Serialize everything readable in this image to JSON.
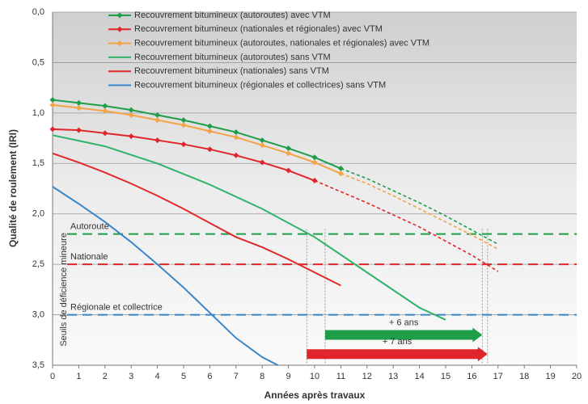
{
  "chart_data": {
    "type": "line",
    "y_label": "Qualité de roulement (IRI)",
    "x_label": "Années après travaux",
    "xlim": [
      0,
      20
    ],
    "xticks": [
      0,
      1,
      2,
      3,
      4,
      5,
      6,
      7,
      8,
      9,
      10,
      11,
      12,
      13,
      14,
      15,
      16,
      17,
      18,
      19,
      20
    ],
    "ylim": [
      0,
      3.5
    ],
    "y_inverted": true,
    "yticks": [
      {
        "value": 0,
        "label": "0,0"
      },
      {
        "value": 0.5,
        "label": "0,5"
      },
      {
        "value": 1,
        "label": "1,0"
      },
      {
        "value": 1.5,
        "label": "1,5"
      },
      {
        "value": 2,
        "label": "2,0"
      },
      {
        "value": 2.5,
        "label": "2,5"
      },
      {
        "value": 3,
        "label": "3,0"
      },
      {
        "value": 3.5,
        "label": "3,5"
      }
    ],
    "grid": true,
    "series": [
      {
        "name": "Recouvrement bitumineux (autoroutes) avec VTM",
        "color": "#1f9e4a",
        "markers": true,
        "dashed_from": 11,
        "x": [
          0,
          1,
          2,
          3,
          4,
          5,
          6,
          7,
          8,
          9,
          10,
          11,
          12,
          13,
          14,
          15,
          16,
          17
        ],
        "values": [
          0.87,
          0.9,
          0.93,
          0.97,
          1.02,
          1.07,
          1.13,
          1.19,
          1.27,
          1.35,
          1.44,
          1.55,
          1.65,
          1.77,
          1.89,
          2.02,
          2.16,
          2.3
        ]
      },
      {
        "name": "Recouvrement bitumineux (nationales et régionales) avec VTM",
        "color": "#e0262b",
        "markers": true,
        "dashed_from": 10,
        "x": [
          0,
          1,
          2,
          3,
          4,
          5,
          6,
          7,
          8,
          9,
          10,
          11,
          12,
          13,
          14,
          15,
          16,
          17
        ],
        "values": [
          1.16,
          1.17,
          1.2,
          1.23,
          1.27,
          1.31,
          1.36,
          1.42,
          1.49,
          1.57,
          1.67,
          1.78,
          1.89,
          2.01,
          2.13,
          2.27,
          2.41,
          2.57
        ]
      },
      {
        "name": "Recouvrement bitumineux (autoroutes, nationales et régionales) avec VTM",
        "color": "#f4a345",
        "markers": true,
        "dashed_from": 11,
        "x": [
          0,
          1,
          2,
          3,
          4,
          5,
          6,
          7,
          8,
          9,
          10,
          11,
          12,
          13,
          14,
          15,
          16,
          17
        ],
        "values": [
          0.92,
          0.95,
          0.98,
          1.02,
          1.07,
          1.12,
          1.18,
          1.24,
          1.32,
          1.4,
          1.49,
          1.6,
          1.7,
          1.82,
          1.95,
          2.08,
          2.21,
          2.35
        ]
      },
      {
        "name": "Recouvrement bitumineux (autoroutes) sans VTM",
        "color": "#2fb36a",
        "markers": false,
        "x": [
          0,
          2,
          4,
          6,
          8,
          10,
          12,
          14,
          15
        ],
        "values": [
          1.22,
          1.33,
          1.5,
          1.71,
          1.95,
          2.23,
          2.58,
          2.93,
          3.05
        ]
      },
      {
        "name": "Recouvrement bitumineux (nationales) sans VTM",
        "color": "#e02a2a",
        "markers": false,
        "x": [
          0,
          1,
          2,
          3,
          4,
          5,
          6,
          7,
          8,
          9,
          10,
          11
        ],
        "values": [
          1.4,
          1.49,
          1.59,
          1.7,
          1.82,
          1.95,
          2.09,
          2.23,
          2.33,
          2.45,
          2.58,
          2.71
        ]
      },
      {
        "name": "Recouvrement bitumineux (régionales et collectrices) sans VTM",
        "color": "#3a86c8",
        "markers": false,
        "x": [
          0,
          1,
          2,
          3,
          4,
          5,
          6,
          7,
          8,
          8.6
        ],
        "values": [
          1.73,
          1.9,
          2.08,
          2.28,
          2.5,
          2.73,
          2.98,
          3.23,
          3.42,
          3.5
        ]
      }
    ],
    "thresholds_label": "Seuils de déficience mineure",
    "thresholds": [
      {
        "label": "Autoroute",
        "value": 2.2,
        "color": "#1f9e4a"
      },
      {
        "label": "Nationale",
        "value": 2.5,
        "color": "#e0262b"
      },
      {
        "label": "Régionale et collectrice",
        "value": 3,
        "color": "#3a86c8"
      }
    ],
    "guides": [
      9.7,
      10.4,
      16.4,
      16.6
    ],
    "arrows": [
      {
        "text": "+ 6 ans",
        "x_from": 10.4,
        "x_to": 16.4,
        "y": 3.2,
        "color": "#1f9e4a"
      },
      {
        "text": "+ 7 ans",
        "x_from": 9.7,
        "x_to": 16.6,
        "y": 3.39,
        "color": "#e0262b"
      }
    ]
  }
}
